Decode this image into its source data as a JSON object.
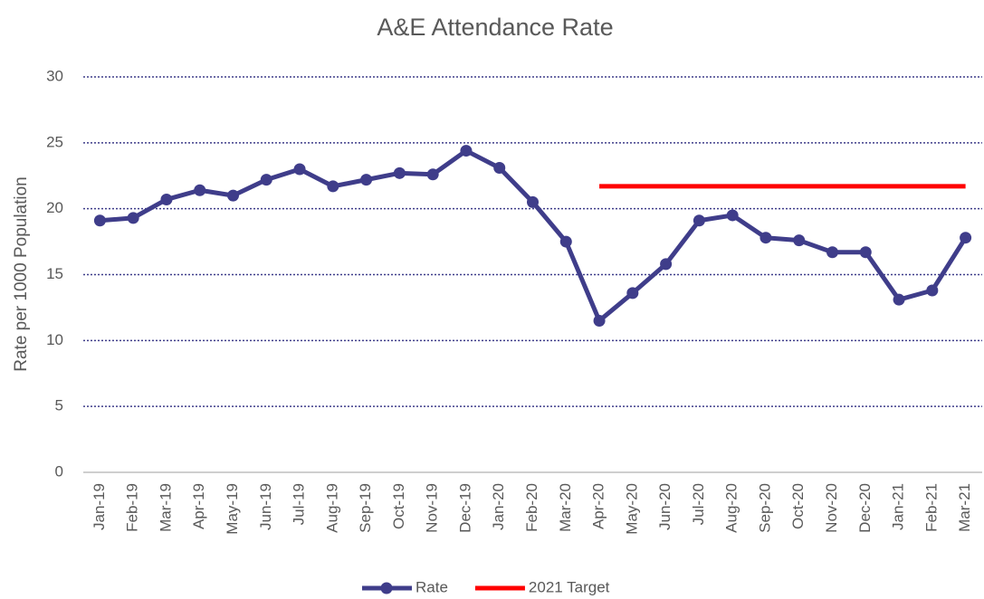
{
  "chart_data": {
    "type": "line",
    "title": "A&E Attendance Rate",
    "y_label": "Rate per 1000 Population",
    "categories": [
      "Jan-19",
      "Feb-19",
      "Mar-19",
      "Apr-19",
      "May-19",
      "Jun-19",
      "Jul-19",
      "Aug-19",
      "Sep-19",
      "Oct-19",
      "Nov-19",
      "Dec-19",
      "Jan-20",
      "Feb-20",
      "Mar-20",
      "Apr-20",
      "May-20",
      "Jun-20",
      "Jul-20",
      "Aug-20",
      "Sep-20",
      "Oct-20",
      "Nov-20",
      "Dec-20",
      "Jan-21",
      "Feb-21",
      "Mar-21"
    ],
    "series": [
      {
        "name": "Rate",
        "color": "#3f3d8a",
        "markers": true,
        "values": [
          19.1,
          19.3,
          20.7,
          21.4,
          21.0,
          22.2,
          23.0,
          21.7,
          22.2,
          22.7,
          22.6,
          24.4,
          23.1,
          20.5,
          17.5,
          11.5,
          13.6,
          15.8,
          19.1,
          19.5,
          17.8,
          17.6,
          16.7,
          16.7,
          13.1,
          13.8,
          17.8
        ]
      },
      {
        "name": "2021 Target",
        "color": "#ff0000",
        "markers": false,
        "values": [
          null,
          null,
          null,
          null,
          null,
          null,
          null,
          null,
          null,
          null,
          null,
          null,
          null,
          null,
          null,
          21.7,
          21.7,
          21.7,
          21.7,
          21.7,
          21.7,
          21.7,
          21.7,
          21.7,
          21.7,
          21.7,
          21.7
        ]
      }
    ],
    "ylim": [
      0,
      30
    ],
    "yticks": [
      0,
      5,
      10,
      15,
      20,
      25,
      30
    ],
    "grid": true,
    "legend": "bottom"
  }
}
